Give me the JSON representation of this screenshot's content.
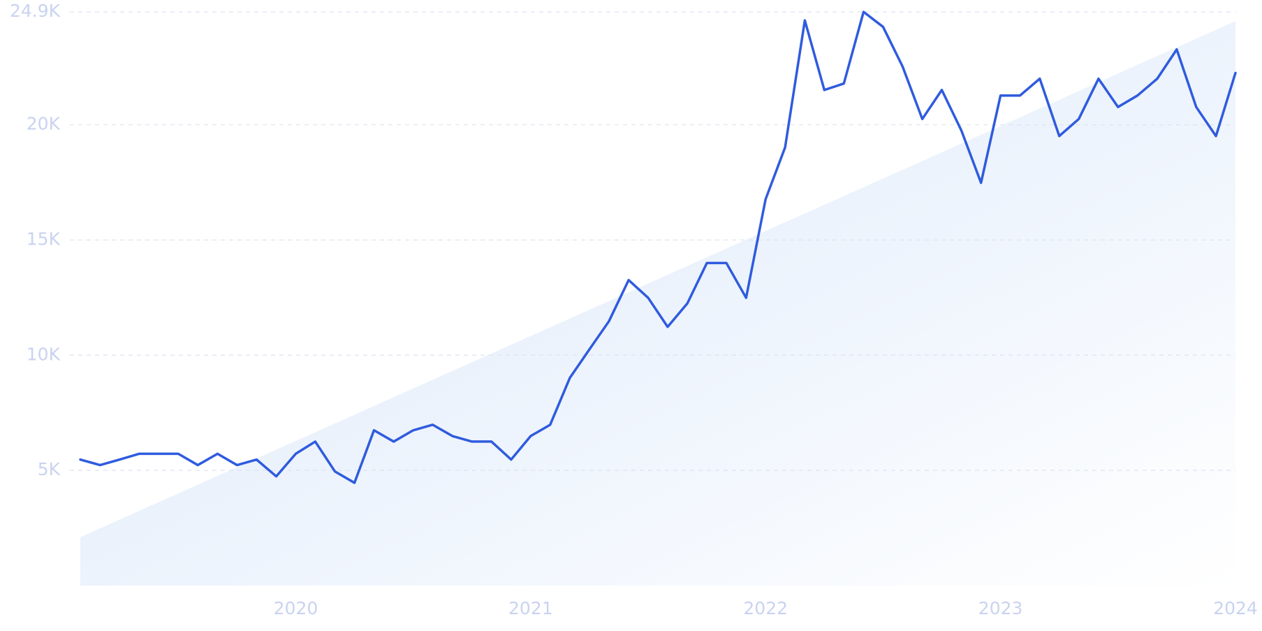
{
  "chart_data": {
    "type": "line",
    "x": [
      2019.083,
      2019.167,
      2019.25,
      2019.333,
      2019.417,
      2019.5,
      2019.583,
      2019.667,
      2019.75,
      2019.833,
      2019.917,
      2020,
      2020.083,
      2020.167,
      2020.25,
      2020.333,
      2020.417,
      2020.5,
      2020.583,
      2020.667,
      2020.75,
      2020.833,
      2020.917,
      2021,
      2021.083,
      2021.167,
      2021.25,
      2021.333,
      2021.417,
      2021.5,
      2021.583,
      2021.667,
      2021.75,
      2021.833,
      2021.917,
      2022,
      2022.083,
      2022.167,
      2022.25,
      2022.333,
      2022.417,
      2022.5,
      2022.583,
      2022.667,
      2022.75,
      2022.833,
      2022.917,
      2023,
      2023.083,
      2023.167,
      2023.25,
      2023.333,
      2023.417,
      2023.5,
      2023.583,
      2023.667,
      2023.75,
      2023.833,
      2023.917,
      2024
    ],
    "values": [
      5470,
      5230,
      5470,
      5720,
      5720,
      5720,
      5230,
      5720,
      5230,
      5470,
      4740,
      5720,
      6250,
      4950,
      4460,
      6740,
      6250,
      6740,
      6980,
      6490,
      6250,
      6250,
      5470,
      6490,
      6980,
      9020,
      10250,
      11470,
      13260,
      12490,
      11230,
      12250,
      14000,
      14000,
      12490,
      16770,
      19020,
      24530,
      21510,
      21790,
      24900,
      24250,
      22530,
      20250,
      21510,
      19760,
      17480,
      21270,
      21270,
      22000,
      19510,
      20250,
      22000,
      20770,
      21270,
      22000,
      23270,
      20770,
      19510,
      22250
    ],
    "color": "#2f5bde",
    "trend_values": [
      2100,
      24500
    ],
    "xlim": [
      2019.083,
      2024
    ],
    "xticks": [
      2020,
      2021,
      2022,
      2023,
      2024
    ],
    "ylim": [
      0,
      24900
    ],
    "yticks": [
      {
        "value": 5000,
        "label": "5K"
      },
      {
        "value": 10000,
        "label": "10K"
      },
      {
        "value": 15000,
        "label": "15K"
      },
      {
        "value": 20000,
        "label": "20K"
      },
      {
        "value": 24900,
        "label": "24.9K"
      }
    ],
    "grid": true
  }
}
